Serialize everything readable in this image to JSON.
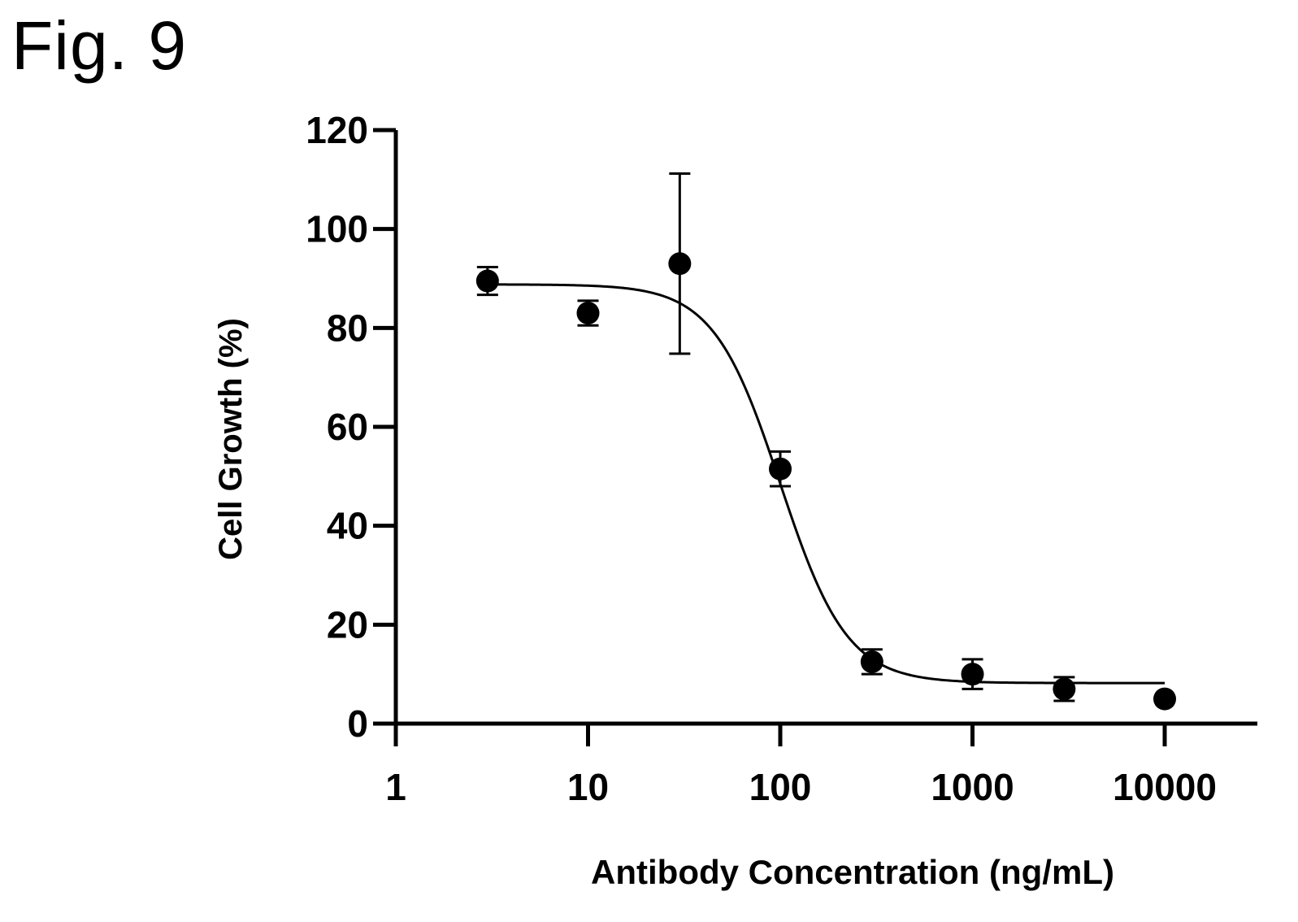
{
  "figure_label": "Fig. 9",
  "chart_data": {
    "type": "scatter",
    "title": "",
    "xlabel": "Antibody Concentration (ng/mL)",
    "ylabel": "Cell Growth (%)",
    "x_scale": "log",
    "xlim": [
      1,
      30000
    ],
    "ylim": [
      0,
      120
    ],
    "x_ticks": [
      1,
      10,
      100,
      1000,
      10000
    ],
    "x_tick_labels": [
      "1",
      "10",
      "100",
      "1000",
      "10000"
    ],
    "y_ticks": [
      0,
      20,
      40,
      60,
      80,
      100,
      120
    ],
    "y_tick_labels": [
      "0",
      "20",
      "40",
      "60",
      "80",
      "100",
      "120"
    ],
    "grid": false,
    "legend": "none",
    "series": [
      {
        "x": [
          3,
          10,
          30,
          100,
          300,
          1000,
          3000,
          10000
        ],
        "y": [
          89.5,
          83,
          93,
          51.5,
          12.5,
          10,
          7,
          5
        ],
        "error": [
          2.8,
          2.5,
          18.2,
          3.5,
          2.5,
          3,
          2.4,
          0
        ],
        "marker": "circle",
        "color": "#000000"
      }
    ],
    "fit_curve": {
      "model": "four-parameter logistic",
      "top": 88.8,
      "bottom": 8.2,
      "ic50": 100,
      "hill_slope": 2.5,
      "x_range": [
        3,
        10000
      ],
      "color": "#000000"
    }
  }
}
